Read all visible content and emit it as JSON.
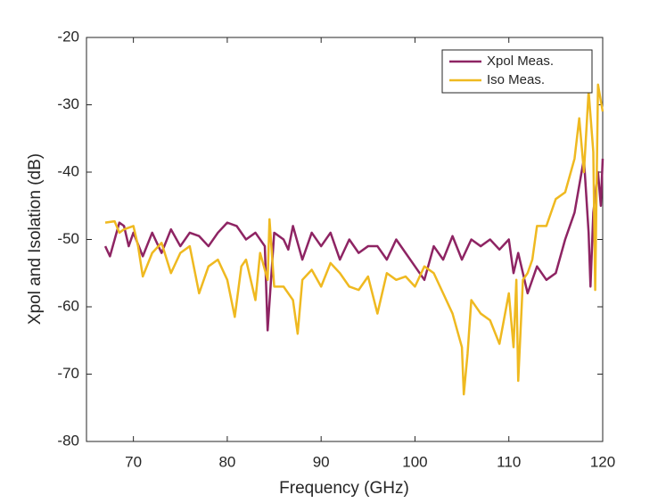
{
  "chart_data": {
    "type": "line",
    "xlabel": "Frequency (GHz)",
    "ylabel": "Xpol and Isolation (dB)",
    "xlim": [
      65,
      120
    ],
    "xticks": [
      70,
      80,
      90,
      100,
      110,
      120
    ],
    "ylim": [
      -80,
      -20
    ],
    "yticks": [
      -80,
      -70,
      -60,
      -50,
      -40,
      -30,
      -20
    ],
    "legend": "northeast",
    "series": [
      {
        "name": "Xpol Meas.",
        "color": "#8e2463",
        "x": [
          67,
          67.5,
          68.5,
          69,
          69.5,
          70,
          71,
          72,
          73,
          74,
          75,
          76,
          77,
          78,
          79,
          80,
          81,
          82,
          83,
          84,
          84.3,
          85,
          86,
          86.5,
          87,
          88,
          89,
          90,
          91,
          92,
          93,
          94,
          95,
          96,
          97,
          98,
          99,
          100,
          101,
          102,
          103,
          104,
          105,
          106,
          107,
          108,
          109,
          110,
          110.5,
          111,
          112,
          113,
          114,
          115,
          116,
          117,
          118,
          118.5,
          118.7,
          119,
          119.5,
          119.8,
          120
        ],
        "values": [
          -51,
          -52.5,
          -47.5,
          -48,
          -51,
          -49,
          -52.5,
          -49,
          -52,
          -48.5,
          -51,
          -49,
          -49.5,
          -51,
          -49,
          -47.5,
          -48,
          -50,
          -49,
          -51,
          -63.5,
          -49,
          -50,
          -51.5,
          -48,
          -53,
          -49,
          -51,
          -49,
          -53,
          -50,
          -52,
          -51,
          -51,
          -53,
          -50,
          -52,
          -54,
          -56,
          -51,
          -53,
          -49.5,
          -53,
          -50,
          -51,
          -50,
          -51.5,
          -50,
          -55,
          -52,
          -58,
          -54,
          -56,
          -55,
          -50,
          -46,
          -38,
          -49,
          -57,
          -46,
          -40,
          -45,
          -38
        ]
      },
      {
        "name": "Iso Meas.",
        "color": "#efb920",
        "x": [
          67,
          68,
          68.5,
          69,
          70,
          70.5,
          71,
          72,
          73,
          74,
          75,
          76,
          77,
          78,
          79,
          80,
          80.8,
          81.5,
          82,
          83,
          83.5,
          84.3,
          84.5,
          85,
          86,
          87,
          87.5,
          88,
          89,
          90,
          91,
          92,
          93,
          94,
          95,
          96,
          97,
          98,
          99,
          100,
          101,
          102,
          103,
          104,
          105,
          105.2,
          105.6,
          106,
          107,
          108,
          109,
          110,
          110.5,
          110.8,
          111,
          111.5,
          112,
          112.5,
          113,
          114,
          115,
          116,
          117,
          117.5,
          118,
          118.5,
          119,
          119.2,
          119.5,
          120
        ],
        "values": [
          -47.5,
          -47.3,
          -49,
          -48.5,
          -48,
          -51,
          -55.5,
          -52,
          -50.5,
          -55,
          -52,
          -51,
          -58,
          -54,
          -53,
          -56,
          -61.5,
          -54,
          -53,
          -59,
          -52,
          -56,
          -47,
          -57,
          -57,
          -59,
          -64,
          -56,
          -54.5,
          -57,
          -53.5,
          -55,
          -57,
          -57.5,
          -55.5,
          -61,
          -55,
          -56,
          -55.5,
          -57,
          -54,
          -55,
          -58,
          -61,
          -66,
          -73,
          -67,
          -59,
          -61,
          -62,
          -65.5,
          -58,
          -66,
          -56,
          -71,
          -56,
          -55,
          -53,
          -48,
          -48,
          -44,
          -43,
          -38,
          -32,
          -40,
          -28,
          -37,
          -57.5,
          -27,
          -31
        ]
      }
    ]
  }
}
